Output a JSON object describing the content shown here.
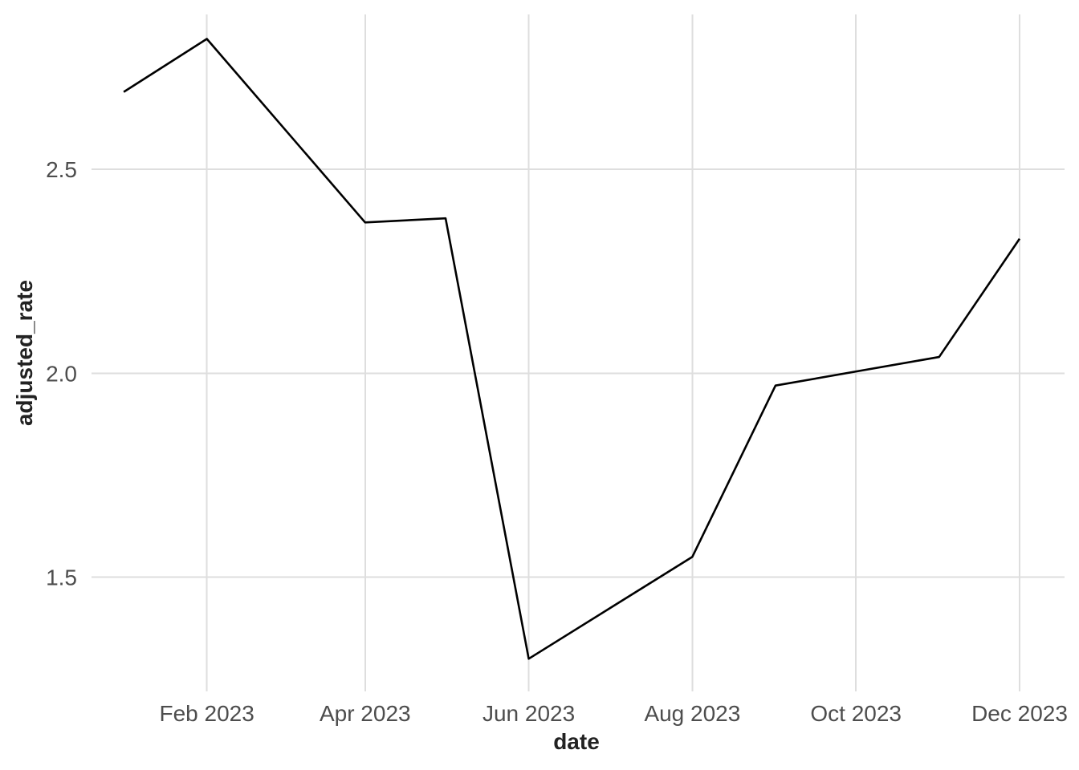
{
  "chart_data": {
    "type": "line",
    "title": "",
    "xlabel": "date",
    "ylabel": "adjusted_rate",
    "x": [
      "2023-01-01",
      "2023-02-01",
      "2023-04-01",
      "2023-05-01",
      "2023-06-01",
      "2023-08-01",
      "2023-09-01",
      "2023-11-01",
      "2023-12-01"
    ],
    "series": [
      {
        "values": [
          2.69,
          2.82,
          2.37,
          2.38,
          1.3,
          1.55,
          1.97,
          2.04,
          2.33
        ],
        "color": "#000000"
      }
    ],
    "xlim": [
      "2022-12-20",
      "2023-12-01"
    ],
    "ylim": [
      1.22,
      2.88
    ],
    "x_ticks": [
      {
        "date": "2023-02-01",
        "label": "Feb 2023"
      },
      {
        "date": "2023-04-01",
        "label": "Apr 2023"
      },
      {
        "date": "2023-06-01",
        "label": "Jun 2023"
      },
      {
        "date": "2023-08-01",
        "label": "Aug 2023"
      },
      {
        "date": "2023-10-01",
        "label": "Oct 2023"
      },
      {
        "date": "2023-12-01",
        "label": "Dec 2023"
      }
    ],
    "y_ticks": [
      {
        "value": 1.5,
        "label": "1.5"
      },
      {
        "value": 2.0,
        "label": "2.0"
      },
      {
        "value": 2.5,
        "label": "2.5"
      }
    ],
    "grid": true,
    "legend": "none"
  }
}
